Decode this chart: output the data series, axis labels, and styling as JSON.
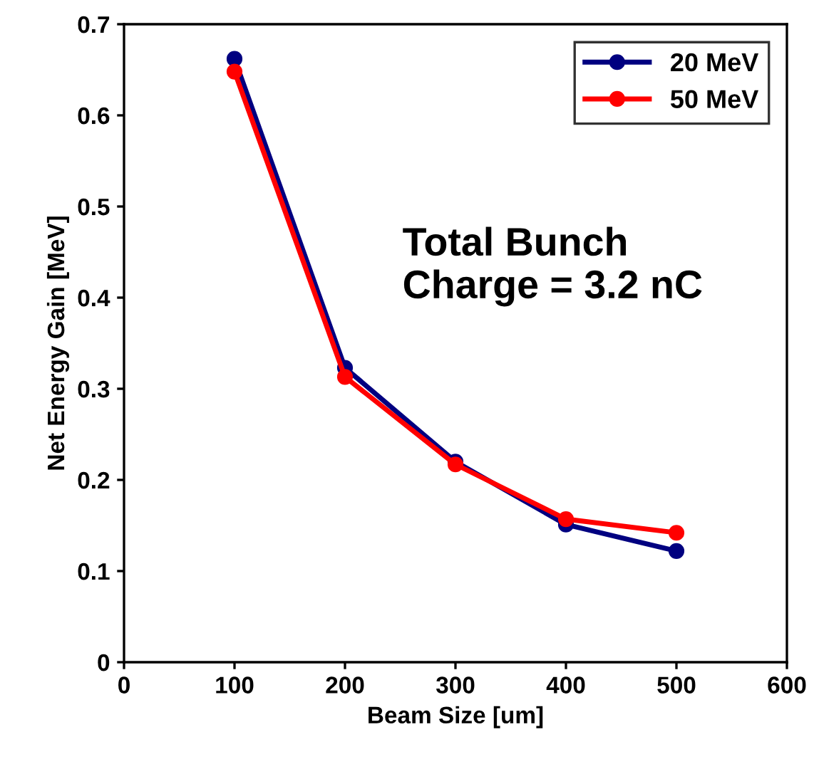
{
  "chart_data": {
    "type": "line",
    "xlabel": "Beam Size [um]",
    "ylabel": "Net Energy Gain [MeV]",
    "x": [
      100,
      200,
      300,
      400,
      500
    ],
    "series": [
      {
        "name": "20 MeV",
        "color": "#000080",
        "values": [
          0.662,
          0.323,
          0.22,
          0.151,
          0.122
        ]
      },
      {
        "name": "50 MeV",
        "color": "#ff0000",
        "values": [
          0.648,
          0.313,
          0.217,
          0.157,
          0.142
        ]
      }
    ],
    "xlim": [
      0,
      600
    ],
    "xticks": [
      0,
      100,
      200,
      300,
      400,
      500,
      600
    ],
    "ylim": [
      0,
      0.7
    ],
    "yticks": [
      0,
      0.1,
      0.2,
      0.3,
      0.4,
      0.5,
      0.6,
      0.7
    ],
    "annotations": [
      "Total Bunch\nCharge = 3.2 nC"
    ],
    "legend": "top right",
    "marker": "circle",
    "grid": false
  }
}
